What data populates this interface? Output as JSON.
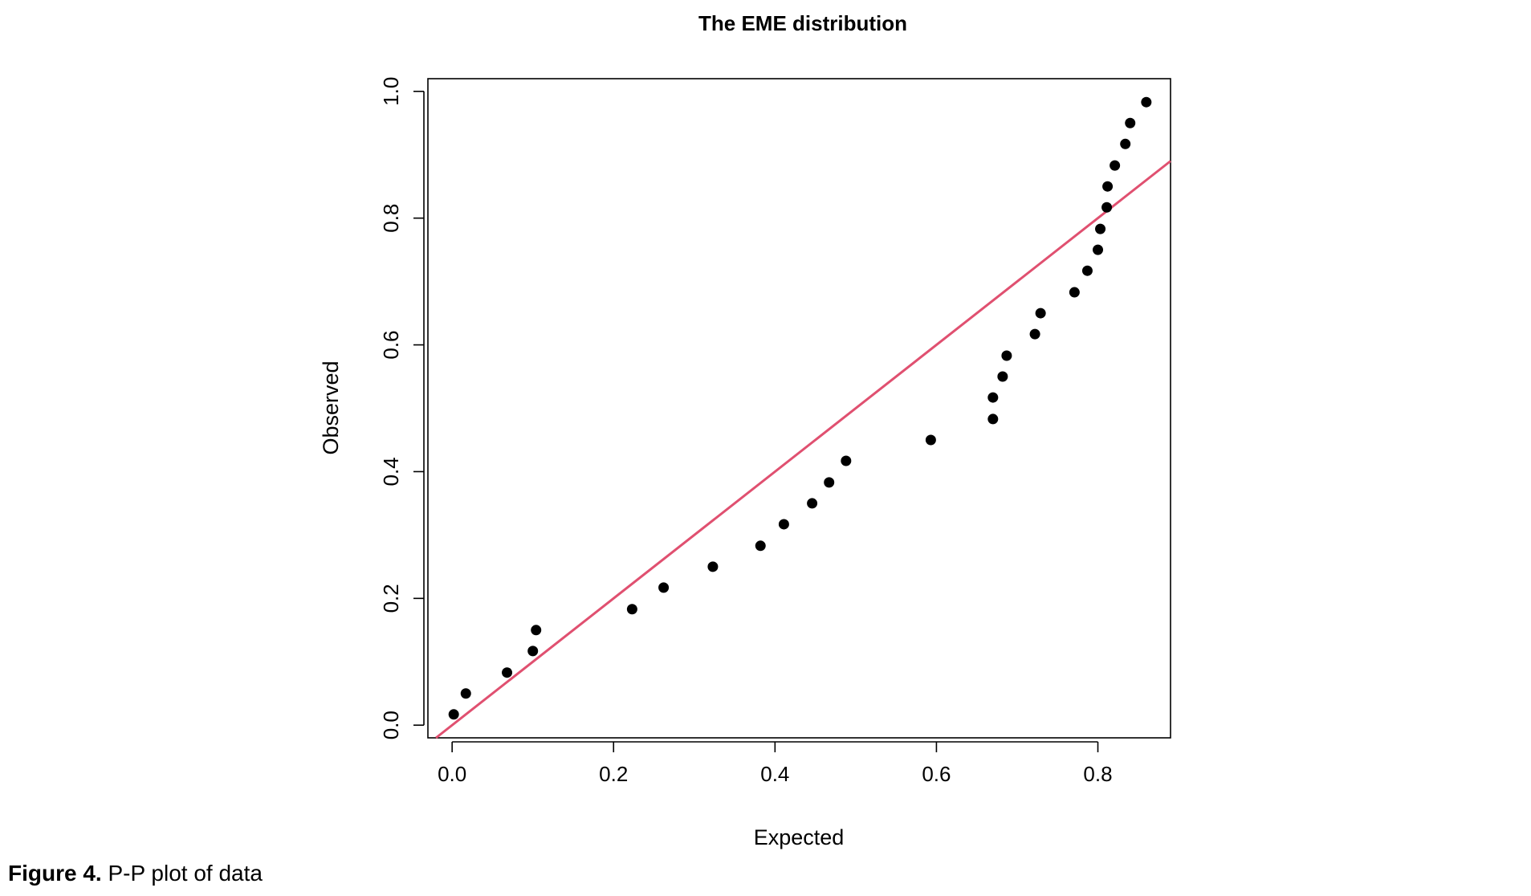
{
  "chart_data": {
    "type": "scatter",
    "title": "The EME distribution",
    "xlabel": "Expected",
    "ylabel": "Observed",
    "xlim": [
      -0.03,
      0.89
    ],
    "ylim": [
      -0.02,
      1.02
    ],
    "xticks": [
      0.0,
      0.2,
      0.4,
      0.6,
      0.8
    ],
    "yticks": [
      0.0,
      0.2,
      0.4,
      0.6,
      0.8,
      1.0
    ],
    "xtick_labels": [
      "0.0",
      "0.2",
      "0.4",
      "0.6",
      "0.8"
    ],
    "ytick_labels": [
      "0.0",
      "0.2",
      "0.4",
      "0.6",
      "0.8",
      "1.0"
    ],
    "grid": false,
    "point_color": "#000000",
    "reference_line": {
      "slope": 1,
      "intercept": 0,
      "color": "#e05070"
    },
    "points": [
      {
        "x": 0.002,
        "y": 0.017
      },
      {
        "x": 0.017,
        "y": 0.05
      },
      {
        "x": 0.068,
        "y": 0.083
      },
      {
        "x": 0.1,
        "y": 0.117
      },
      {
        "x": 0.104,
        "y": 0.15
      },
      {
        "x": 0.223,
        "y": 0.183
      },
      {
        "x": 0.262,
        "y": 0.217
      },
      {
        "x": 0.323,
        "y": 0.25
      },
      {
        "x": 0.382,
        "y": 0.283
      },
      {
        "x": 0.411,
        "y": 0.317
      },
      {
        "x": 0.446,
        "y": 0.35
      },
      {
        "x": 0.467,
        "y": 0.383
      },
      {
        "x": 0.488,
        "y": 0.417
      },
      {
        "x": 0.593,
        "y": 0.45
      },
      {
        "x": 0.67,
        "y": 0.483
      },
      {
        "x": 0.67,
        "y": 0.517
      },
      {
        "x": 0.682,
        "y": 0.55
      },
      {
        "x": 0.687,
        "y": 0.583
      },
      {
        "x": 0.722,
        "y": 0.617
      },
      {
        "x": 0.729,
        "y": 0.65
      },
      {
        "x": 0.771,
        "y": 0.683
      },
      {
        "x": 0.787,
        "y": 0.717
      },
      {
        "x": 0.8,
        "y": 0.75
      },
      {
        "x": 0.803,
        "y": 0.783
      },
      {
        "x": 0.811,
        "y": 0.817
      },
      {
        "x": 0.812,
        "y": 0.85
      },
      {
        "x": 0.821,
        "y": 0.883
      },
      {
        "x": 0.834,
        "y": 0.917
      },
      {
        "x": 0.84,
        "y": 0.95
      },
      {
        "x": 0.86,
        "y": 0.983
      }
    ]
  },
  "caption": {
    "label": "Figure 4.",
    "text": " P-P plot of data"
  }
}
